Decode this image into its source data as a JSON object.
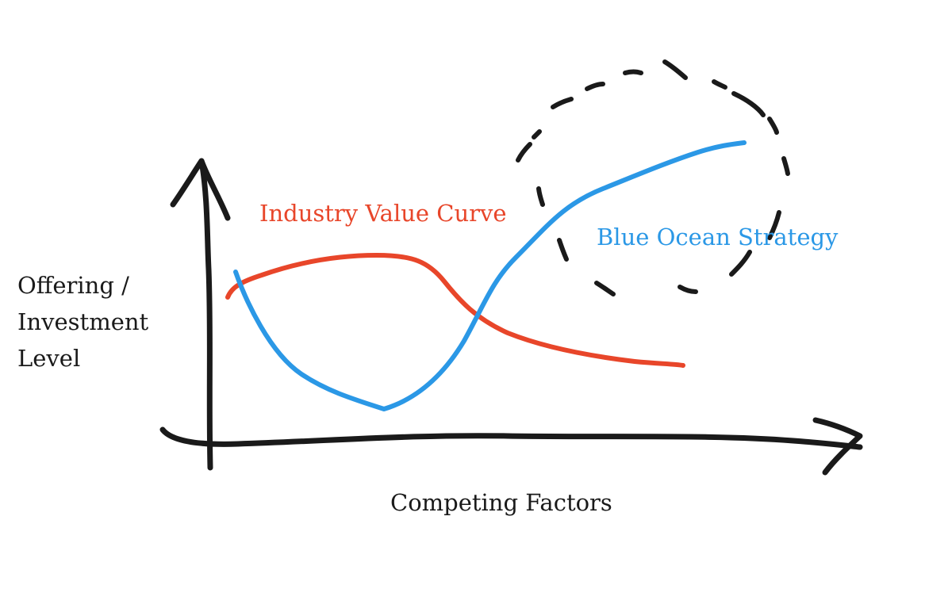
{
  "diagram": {
    "y_axis_label": "Offering / Investment Level",
    "x_axis_label": "Competing Factors",
    "curves": [
      {
        "id": "industry",
        "label": "Industry Value Curve",
        "color": "#e8462a"
      },
      {
        "id": "blue-ocean",
        "label": "Blue Ocean Strategy",
        "color": "#2b98e6"
      }
    ],
    "axis_color": "#1a1a1a",
    "highlight": {
      "style": "dashed-circle",
      "around": "blue-ocean"
    }
  }
}
